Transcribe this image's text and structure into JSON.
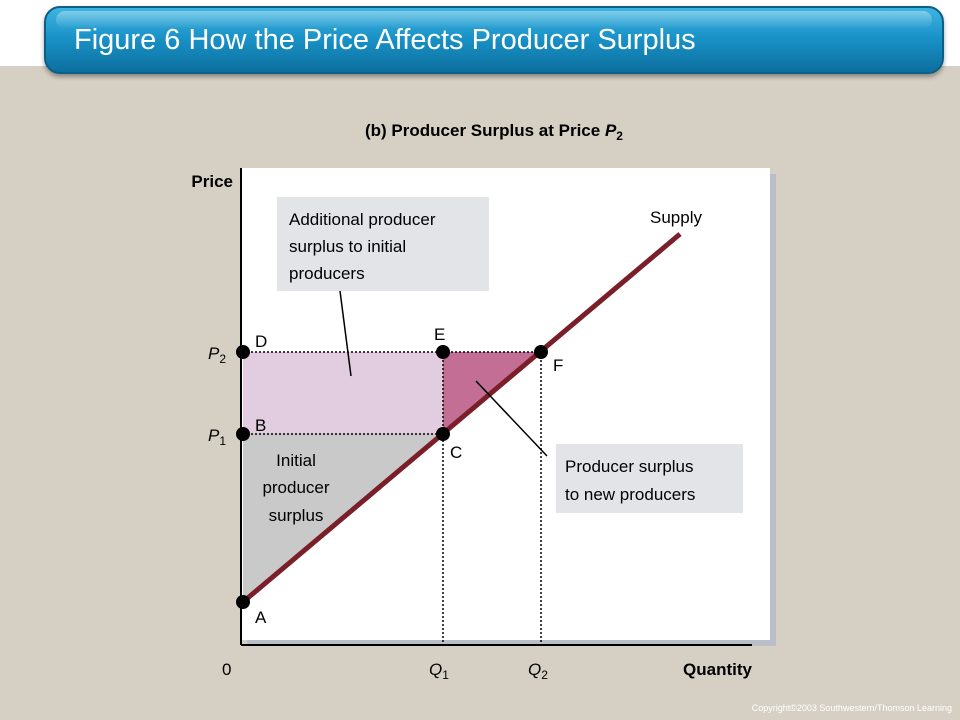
{
  "slide": {
    "title": "Figure 6 How the Price Affects Producer Surplus",
    "copyright": "Copyright©2003  Southwestern/Thomson Learning"
  },
  "figure": {
    "subtitle_main": "(b) Producer Surplus at Price ",
    "subtitle_var": "P",
    "subtitle_sub": "2",
    "y_axis_label": "Price",
    "x_axis_label": "Quantity",
    "origin_label": "0",
    "curve_label": "Supply",
    "points": {
      "A": "A",
      "B": "B",
      "C": "C",
      "D": "D",
      "E": "E",
      "F": "F"
    },
    "price_ticks": [
      {
        "var": "P",
        "sub": "2"
      },
      {
        "var": "P",
        "sub": "1"
      }
    ],
    "quantity_ticks": [
      {
        "var": "Q",
        "sub": "1"
      },
      {
        "var": "Q",
        "sub": "2"
      }
    ],
    "callout_additional": [
      "Additional producer",
      "surplus to initial",
      "producers"
    ],
    "callout_initial": [
      "Initial",
      "producer",
      "surplus"
    ],
    "callout_new": [
      "Producer surplus",
      "to new producers"
    ],
    "colors": {
      "supply_line": "#7a1f2a",
      "additional_surplus": "#e2cde0",
      "new_surplus": "#c26e95",
      "initial_surplus": "#c9c9c9",
      "plot_background": "#ffffff",
      "callout_background": "#e3e4e8"
    }
  }
}
